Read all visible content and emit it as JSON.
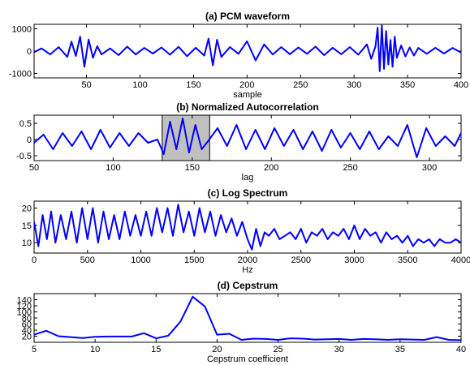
{
  "chart_data": [
    {
      "type": "line",
      "title": "(a) PCM waveform",
      "xlabel": "sample",
      "ylabel": "",
      "xlim": [
        1,
        400
      ],
      "ylim": [
        -1200,
        1200
      ],
      "xticks": [
        50,
        100,
        150,
        200,
        250,
        300,
        350,
        400
      ],
      "yticks": [
        -1000,
        0,
        1000
      ],
      "grid": false,
      "series": [
        {
          "color": "#0000ff",
          "x": [
            1,
            8,
            16,
            24,
            32,
            36,
            40,
            44,
            48,
            52,
            56,
            60,
            64,
            72,
            80,
            88,
            96,
            104,
            112,
            120,
            128,
            136,
            144,
            152,
            160,
            164,
            168,
            172,
            176,
            184,
            192,
            200,
            208,
            216,
            224,
            232,
            240,
            248,
            256,
            264,
            272,
            280,
            288,
            296,
            304,
            312,
            316,
            320,
            322,
            324,
            326,
            328,
            330,
            332,
            334,
            336,
            338,
            340,
            344,
            348,
            352,
            356,
            360,
            368,
            376,
            384,
            392,
            400
          ],
          "y": [
            -50,
            120,
            -150,
            180,
            -260,
            420,
            -220,
            650,
            -700,
            520,
            -300,
            220,
            -150,
            120,
            -180,
            200,
            -150,
            140,
            -110,
            160,
            -160,
            190,
            -230,
            150,
            -200,
            560,
            -640,
            510,
            -260,
            180,
            -120,
            440,
            -420,
            300,
            -150,
            180,
            -140,
            160,
            -120,
            200,
            -180,
            150,
            -140,
            180,
            -160,
            300,
            -350,
            200,
            1050,
            -900,
            1150,
            -800,
            900,
            -600,
            500,
            -700,
            650,
            -300,
            250,
            -240,
            160,
            -200,
            140,
            -120,
            150,
            -110,
            140,
            -60
          ]
        }
      ]
    },
    {
      "type": "line",
      "title": "(b) Normalized Autocorrelation",
      "xlabel": "lag",
      "ylabel": "",
      "xlim": [
        50,
        320
      ],
      "ylim": [
        -0.65,
        0.75
      ],
      "xticks": [
        50,
        100,
        150,
        200,
        250,
        300
      ],
      "yticks": [
        -0.5,
        0,
        0.5
      ],
      "yticklabels": [
        "-0.5",
        "0",
        "0.5"
      ],
      "grid": false,
      "highlight_x_range": [
        131,
        161
      ],
      "series": [
        {
          "color": "#0000ff",
          "x": [
            50,
            56,
            62,
            68,
            74,
            80,
            86,
            92,
            98,
            104,
            110,
            116,
            122,
            128,
            132,
            136,
            140,
            144,
            148,
            152,
            156,
            160,
            166,
            172,
            178,
            184,
            190,
            196,
            202,
            208,
            214,
            220,
            226,
            232,
            238,
            244,
            250,
            256,
            262,
            268,
            274,
            280,
            286,
            292,
            298,
            304,
            310,
            316,
            320
          ],
          "y": [
            -0.1,
            0.15,
            -0.3,
            0.2,
            -0.2,
            0.25,
            -0.3,
            0.3,
            -0.25,
            0.2,
            -0.2,
            0.2,
            -0.1,
            0.0,
            -0.45,
            0.55,
            -0.3,
            0.65,
            -0.4,
            0.45,
            -0.3,
            -0.05,
            0.35,
            -0.2,
            0.45,
            -0.3,
            0.3,
            -0.3,
            0.35,
            -0.2,
            0.3,
            -0.3,
            0.25,
            -0.35,
            0.3,
            -0.25,
            0.2,
            -0.3,
            0.25,
            -0.3,
            0.1,
            -0.2,
            0.45,
            -0.55,
            0.35,
            -0.2,
            0.1,
            -0.2,
            0.2
          ]
        }
      ]
    },
    {
      "type": "line",
      "title": "(c) Log Spectrum",
      "xlabel": "Hz",
      "ylabel": "",
      "xlim": [
        0,
        4000
      ],
      "ylim": [
        7,
        22
      ],
      "xticks": [
        0,
        500,
        1000,
        1500,
        2000,
        2500,
        3000,
        3500,
        4000
      ],
      "yticks": [
        10,
        15,
        20
      ],
      "grid": false,
      "series": [
        {
          "color": "#0000ff",
          "x": [
            0,
            40,
            80,
            120,
            160,
            200,
            250,
            300,
            350,
            400,
            450,
            500,
            550,
            600,
            650,
            700,
            750,
            800,
            850,
            900,
            950,
            1000,
            1050,
            1100,
            1150,
            1200,
            1250,
            1300,
            1350,
            1400,
            1450,
            1500,
            1550,
            1600,
            1650,
            1700,
            1750,
            1800,
            1850,
            1900,
            1950,
            2000,
            2040,
            2080,
            2120,
            2160,
            2200,
            2250,
            2300,
            2350,
            2400,
            2450,
            2500,
            2550,
            2600,
            2650,
            2700,
            2750,
            2800,
            2850,
            2900,
            2950,
            3000,
            3050,
            3100,
            3150,
            3200,
            3250,
            3300,
            3350,
            3400,
            3450,
            3500,
            3550,
            3600,
            3650,
            3700,
            3750,
            3800,
            3850,
            3900,
            3950,
            4000
          ],
          "y": [
            16,
            9,
            18,
            11,
            19,
            10,
            18,
            11,
            19,
            10,
            20,
            11,
            20,
            10,
            19,
            11,
            18,
            11,
            19,
            12,
            18,
            12,
            19,
            12,
            20,
            13,
            20,
            12,
            21,
            13,
            19,
            12,
            20,
            13,
            19,
            12,
            18,
            13,
            17,
            12,
            16,
            11,
            8,
            14,
            9,
            13,
            12,
            14,
            11,
            12,
            13,
            11,
            14,
            10,
            13,
            12,
            14,
            11,
            13,
            12,
            14,
            11,
            15,
            11,
            14,
            12,
            13,
            10,
            13,
            11,
            12,
            10,
            12,
            9,
            11,
            10,
            11,
            9,
            11,
            10,
            10,
            11,
            10
          ]
        }
      ]
    },
    {
      "type": "line",
      "title": "(d) Cepstrum",
      "xlabel": "Cepstrum coefficient",
      "ylabel": "",
      "xlim": [
        5,
        40
      ],
      "ylim": [
        0,
        160
      ],
      "xticks": [
        5,
        10,
        15,
        20,
        25,
        30,
        35,
        40
      ],
      "yticks": [
        20,
        40,
        60,
        80,
        100,
        120,
        140
      ],
      "grid": false,
      "series": [
        {
          "color": "#0000ff",
          "x": [
            5,
            6,
            7,
            8,
            9,
            10,
            11,
            12,
            13,
            14,
            15,
            16,
            17,
            18,
            19,
            20,
            21,
            22,
            23,
            24,
            25,
            26,
            27,
            28,
            29,
            30,
            31,
            32,
            33,
            34,
            35,
            36,
            37,
            38,
            39,
            40
          ],
          "y": [
            25,
            38,
            20,
            17,
            14,
            18,
            19,
            19,
            19,
            30,
            13,
            22,
            68,
            150,
            118,
            25,
            28,
            8,
            12,
            11,
            8,
            13,
            12,
            9,
            10,
            11,
            8,
            11,
            10,
            8,
            10,
            9,
            8,
            17,
            8,
            7
          ]
        }
      ]
    }
  ]
}
